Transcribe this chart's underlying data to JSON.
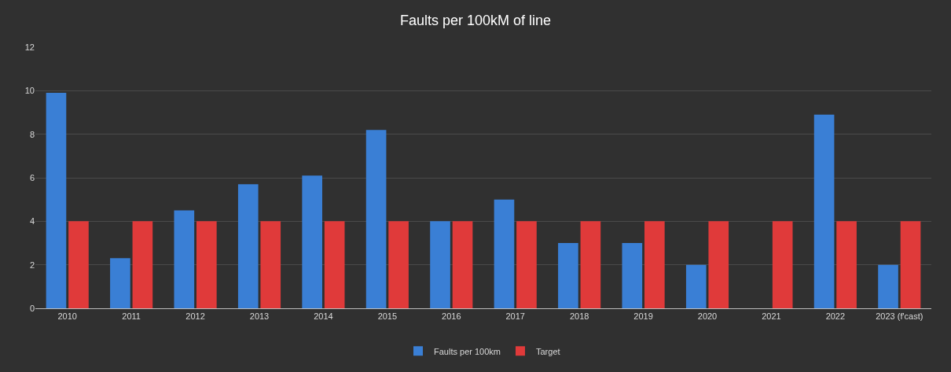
{
  "chart_data": {
    "type": "bar",
    "title": "Faults per 100kM of line",
    "categories": [
      "2010",
      "2011",
      "2012",
      "2013",
      "2014",
      "2015",
      "2016",
      "2017",
      "2018",
      "2019",
      "2020",
      "2021",
      "2022",
      "2023 (f'cast)"
    ],
    "series": [
      {
        "name": "Faults per 100km",
        "color": "#3a7fd5",
        "values": [
          9.9,
          2.3,
          4.5,
          5.7,
          6.1,
          8.2,
          4,
          5,
          3,
          3,
          2,
          null,
          8.9,
          2
        ]
      },
      {
        "name": "Target",
        "color": "#e03a3a",
        "values": [
          4,
          4,
          4,
          4,
          4,
          4,
          4,
          4,
          4,
          4,
          4,
          4,
          4,
          4
        ]
      }
    ],
    "ylim": [
      0,
      12
    ],
    "yticks": [
      0,
      2,
      4,
      6,
      8,
      10,
      12
    ],
    "grid": "y",
    "legend": "bottom"
  }
}
